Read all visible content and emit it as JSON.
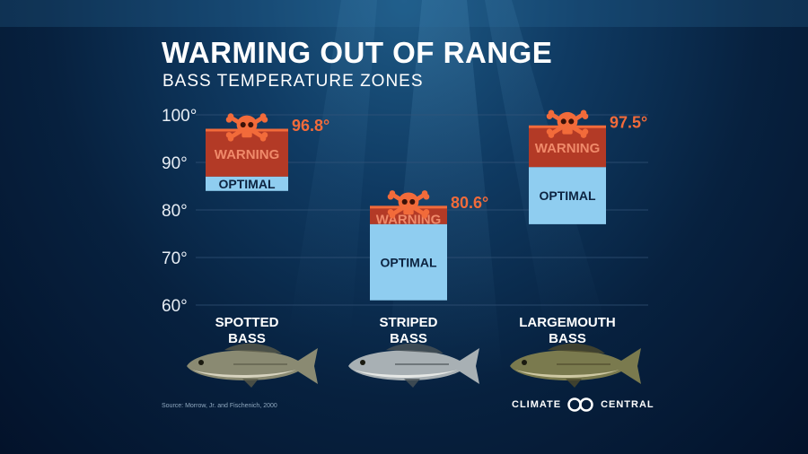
{
  "title": "WARMING OUT OF RANGE",
  "subtitle": "BASS TEMPERATURE ZONES",
  "source": "Source: Morrow, Jr. and Fischenich, 2000",
  "logo": {
    "left": "CLIMATE",
    "right": "CENTRAL"
  },
  "colors": {
    "warning": "#b33a26",
    "optimal": "#8fcdf0",
    "accent": "#f26b3a",
    "grid": "#35557a",
    "text": "#ffffff"
  },
  "chart_data": {
    "type": "bar",
    "ylim": [
      60,
      100
    ],
    "yticks": [
      "60°",
      "70°",
      "80°",
      "90°",
      "100°"
    ],
    "categories": [
      "SPOTTED BASS",
      "STRIPED BASS",
      "LARGEMOUTH BASS"
    ],
    "category_lines": [
      [
        "SPOTTED",
        "BASS"
      ],
      [
        "STRIPED",
        "BASS"
      ],
      [
        "LARGEMOUTH",
        "BASS"
      ]
    ],
    "zone_labels": {
      "warning": "WARNING",
      "optimal": "OPTIMAL"
    },
    "series": [
      {
        "name": "OPTIMAL",
        "ranges": [
          [
            84,
            87
          ],
          [
            61,
            77
          ],
          [
            77,
            89
          ]
        ]
      },
      {
        "name": "WARNING",
        "ranges": [
          [
            87,
            96.8
          ],
          [
            77,
            80.6
          ],
          [
            89,
            97.5
          ]
        ]
      }
    ],
    "max_labels": [
      "96.8°",
      "80.6°",
      "97.5°"
    ],
    "annotation_icon": "skull-crossbones-icon"
  }
}
